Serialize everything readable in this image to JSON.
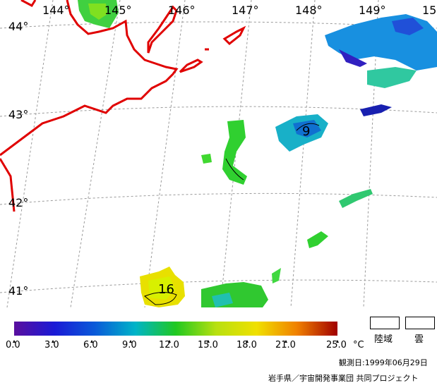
{
  "map": {
    "lon_labels": [
      "144°",
      "145°",
      "146°",
      "147°",
      "148°",
      "149°",
      "15"
    ],
    "lat_labels": [
      "44°",
      "43°",
      "42°",
      "41°"
    ],
    "contour_labels": [
      "9",
      "16"
    ]
  },
  "legend": {
    "ticks": [
      "0.0",
      "3.0",
      "6.0",
      "9.0",
      "12.0",
      "15.0",
      "18.0",
      "21.0",
      "25.0"
    ],
    "unit": "°C",
    "land_label": "陸域",
    "cloud_label": "雲",
    "colors": [
      "#5a0f9e",
      "#1a1ad6",
      "#0a5ad8",
      "#00b4c8",
      "#20c820",
      "#b8e010",
      "#f0e000",
      "#f08000",
      "#a00000"
    ]
  },
  "footer": {
    "date": "観測日:1999年06月29日",
    "credit": "岩手県／宇宙開発事業団  共同プロジェクト"
  }
}
